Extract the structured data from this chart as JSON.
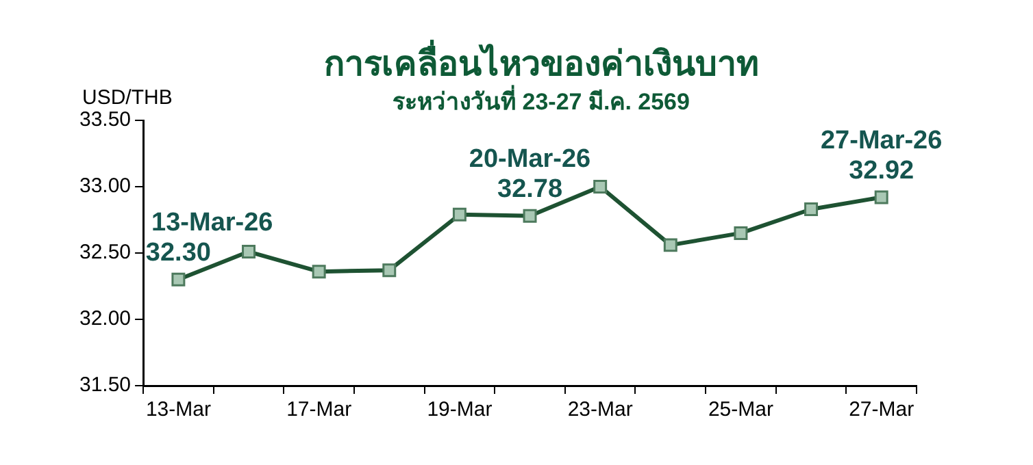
{
  "chart_data": {
    "type": "line",
    "title": "การเคลื่อนไหวของค่าเงินบาท",
    "subtitle": "ระหว่างวันที่ 23-27 มี.ค. 2569",
    "ylabel": "USD/THB",
    "categories": [
      "13-Mar",
      null,
      "17-Mar",
      null,
      "19-Mar",
      null,
      "23-Mar",
      null,
      "25-Mar",
      null,
      "27-Mar"
    ],
    "series": [
      {
        "color": "#1e5232",
        "values": [
          32.3,
          32.51,
          32.36,
          32.37,
          32.79,
          32.78,
          33.0,
          32.56,
          32.65,
          32.83,
          32.92
        ],
        "value_labels": [
          "32.30",
          null,
          null,
          null,
          null,
          "32.78",
          null,
          null,
          null,
          null,
          "32.92"
        ]
      }
    ],
    "annotations": [
      "13-Mar-26",
      "20-Mar-26",
      "27-Mar-26"
    ],
    "ylim": [
      31.5,
      33.5
    ],
    "yticks": [
      {
        "value": 31.5,
        "label": "31.50"
      },
      {
        "value": 32,
        "label": "32.00"
      },
      {
        "value": 32.5,
        "label": "32.50"
      },
      {
        "value": 33,
        "label": "33.00"
      },
      {
        "value": 33.5,
        "label": "33.50"
      }
    ],
    "grid": false,
    "legend": false,
    "marker": "square",
    "line_style": "solid"
  }
}
